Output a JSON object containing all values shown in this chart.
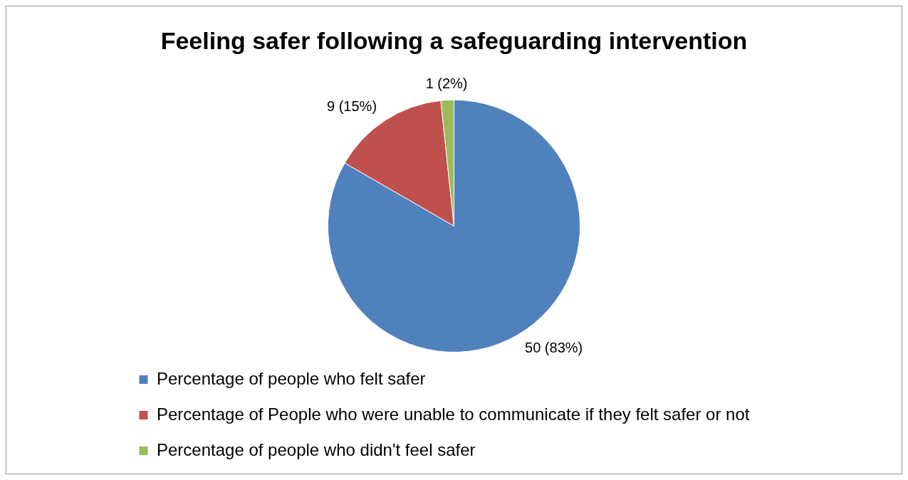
{
  "chart_data": {
    "type": "pie",
    "title": "Feeling safer following a safeguarding intervention",
    "categories": [
      "Percentage of people who felt safer",
      "Percentage of People who were unable to communicate if they felt safer or not",
      "Percentage of people who didn't feel safer"
    ],
    "values": [
      50,
      9,
      1
    ],
    "colors": [
      "#4f81bd",
      "#c0504d",
      "#9bbb59"
    ],
    "value_labels": [
      "50 (83%)",
      "9 (15%)",
      "1 (2%)"
    ],
    "legend": "bottom"
  }
}
